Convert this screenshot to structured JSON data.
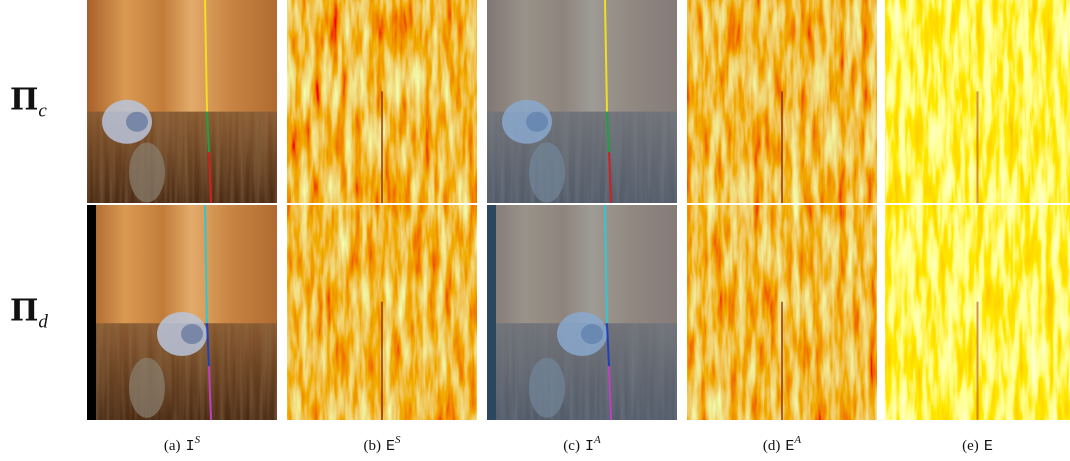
{
  "row_labels": [
    {
      "symbol": "Π",
      "subscript": "c"
    },
    {
      "symbol": "Π",
      "subscript": "d"
    }
  ],
  "panels": [
    {
      "label": "(a)",
      "symbol": "I",
      "superscript": "S"
    },
    {
      "label": "(b)",
      "symbol": "E",
      "superscript": "S"
    },
    {
      "label": "(c)",
      "symbol": "I",
      "superscript": "A"
    },
    {
      "label": "(d)",
      "symbol": "E",
      "superscript": "A"
    },
    {
      "label": "(e)",
      "symbol": "E"
    }
  ]
}
